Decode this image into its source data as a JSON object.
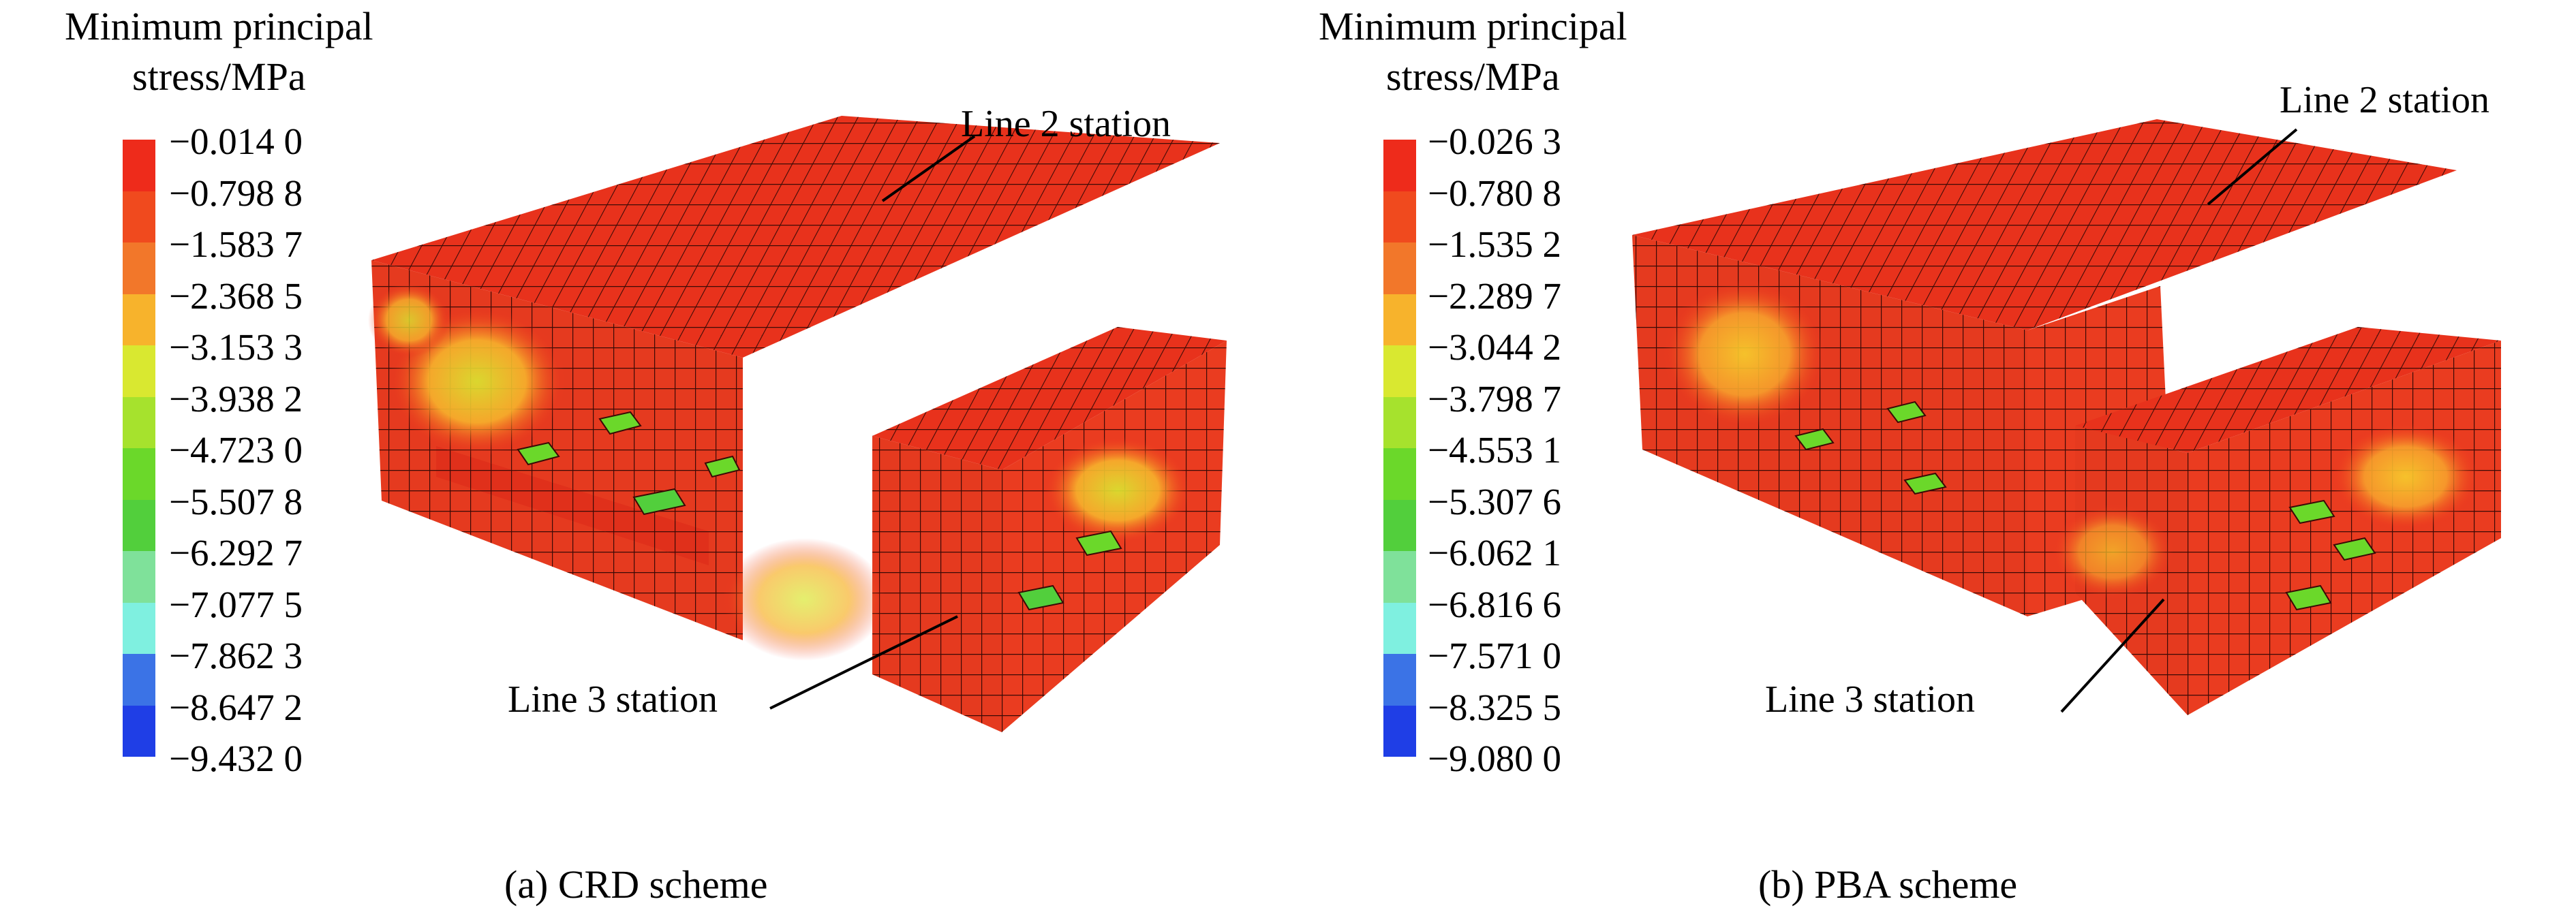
{
  "panels": [
    {
      "caption": "(a) CRD scheme",
      "legend_title_line1": "Minimum principal",
      "legend_title_line2": "stress/MPa",
      "ticks": [
        "−0.014 0",
        "−0.798 8",
        "−1.583 7",
        "−2.368 5",
        "−3.153 3",
        "−3.938 2",
        "−4.723 0",
        "−5.507 8",
        "−6.292 7",
        "−7.077 5",
        "−7.862 3",
        "−8.647 2",
        "−9.432 0"
      ],
      "label_line2": "Line 2 station",
      "label_line3": "Line 3 station"
    },
    {
      "caption": "(b) PBA scheme",
      "legend_title_line1": "Minimum principal",
      "legend_title_line2": "stress/MPa",
      "ticks": [
        "−0.026 3",
        "−0.780 8",
        "−1.535 2",
        "−2.289 7",
        "−3.044 2",
        "−3.798 7",
        "−4.553 1",
        "−5.307 6",
        "−6.062 1",
        "−6.816 6",
        "−7.571 0",
        "−8.325 5",
        "−9.080 0"
      ],
      "label_line2": "Line 2 station",
      "label_line3": "Line 3 station"
    }
  ],
  "colorbar_colors": [
    "#ee2b1b",
    "#f04a1e",
    "#f2772a",
    "#f7b32c",
    "#d9e830",
    "#a6e22d",
    "#6bd82a",
    "#52cf3c",
    "#7fe19a",
    "#7ff0e0",
    "#3b73e6",
    "#1f3ee6",
    "#0a1ee2"
  ]
}
